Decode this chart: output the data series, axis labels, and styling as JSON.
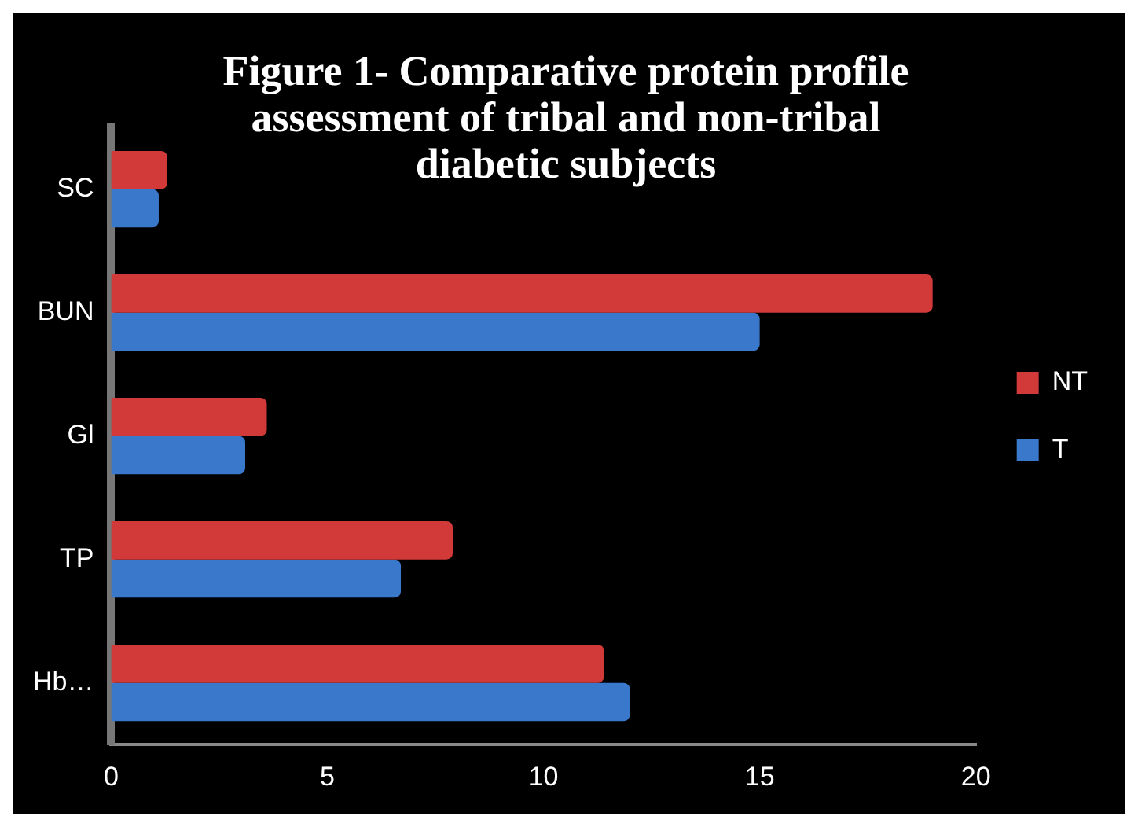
{
  "chart_data": {
    "type": "bar",
    "orientation": "horizontal",
    "title": "Figure 1- Comparative protein profile assessment of tribal and non-tribal diabetic subjects",
    "categories": [
      "SC",
      "BUN",
      "Gl",
      "TP",
      "Hb…"
    ],
    "series": [
      {
        "name": "NT",
        "color": "#d23a3a",
        "values": [
          1.3,
          19.0,
          3.6,
          7.9,
          11.4
        ]
      },
      {
        "name": "T",
        "color": "#3a78cc",
        "values": [
          1.1,
          15.0,
          3.1,
          6.7,
          12.0
        ]
      }
    ],
    "xlim": [
      0,
      20
    ],
    "xticks": [
      0,
      5,
      10,
      15,
      20
    ],
    "grid": false,
    "legend": "right"
  }
}
